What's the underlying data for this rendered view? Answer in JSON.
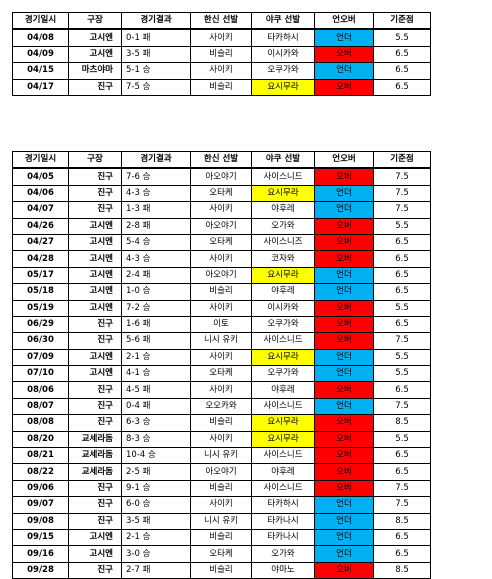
{
  "headers": [
    "경기일시",
    "구장",
    "경기결과",
    "한신 선발",
    "야쿠 선발",
    "언오버",
    "기준점"
  ],
  "colors": {
    "under": "#00b0f0",
    "over": "#ff0000",
    "yellow": "#ffff00"
  },
  "table1": [
    {
      "date": "04/08",
      "venue": "고시엔",
      "result": "0-1 패",
      "hanshin": "사이키",
      "yakult": "타카하시",
      "yakult_hl": false,
      "uo": "언더",
      "uo_color": "under",
      "line": "5.5"
    },
    {
      "date": "04/09",
      "venue": "고시엔",
      "result": "3-5 패",
      "hanshin": "비슬리",
      "yakult": "이시카와",
      "yakult_hl": false,
      "uo": "오버",
      "uo_color": "over",
      "line": "6.5"
    },
    {
      "date": "04/15",
      "venue": "마츠야마",
      "result": "5-1 승",
      "hanshin": "사이키",
      "yakult": "오쿠가와",
      "yakult_hl": false,
      "uo": "언더",
      "uo_color": "under",
      "line": "6.5"
    },
    {
      "date": "04/17",
      "venue": "진구",
      "result": "7-5 승",
      "hanshin": "비슬리",
      "yakult": "요시무라",
      "yakult_hl": true,
      "uo": "오버",
      "uo_color": "over",
      "line": "6.5"
    }
  ],
  "table2": [
    {
      "date": "04/05",
      "venue": "진구",
      "result": "7-6 승",
      "hanshin": "아오야기",
      "yakult": "사이스니드",
      "yakult_hl": false,
      "uo": "오버",
      "uo_color": "over",
      "line": "7.5"
    },
    {
      "date": "04/06",
      "venue": "진구",
      "result": "4-3 승",
      "hanshin": "오타케",
      "yakult": "요시무라",
      "yakult_hl": true,
      "uo": "언더",
      "uo_color": "under",
      "line": "7.5"
    },
    {
      "date": "04/07",
      "venue": "진구",
      "result": "1-3 패",
      "hanshin": "사이키",
      "yakult": "야후레",
      "yakult_hl": false,
      "uo": "언더",
      "uo_color": "under",
      "line": "7.5"
    },
    {
      "date": "04/26",
      "venue": "고시엔",
      "result": "2-8 패",
      "hanshin": "아오야기",
      "yakult": "오가와",
      "yakult_hl": false,
      "uo": "오버",
      "uo_color": "over",
      "line": "5.5"
    },
    {
      "date": "04/27",
      "venue": "고시엔",
      "result": "5-4 승",
      "hanshin": "오타케",
      "yakult": "사이스니즈",
      "yakult_hl": false,
      "uo": "오버",
      "uo_color": "over",
      "line": "6.5"
    },
    {
      "date": "04/28",
      "venue": "고시엔",
      "result": "4-3 승",
      "hanshin": "사이키",
      "yakult": "코자와",
      "yakult_hl": false,
      "uo": "오버",
      "uo_color": "over",
      "line": "6.5"
    },
    {
      "date": "05/17",
      "venue": "고시엔",
      "result": "2-4 패",
      "hanshin": "아오야기",
      "yakult": "요시무라",
      "yakult_hl": true,
      "uo": "언더",
      "uo_color": "under",
      "line": "6.5"
    },
    {
      "date": "05/18",
      "venue": "고시엔",
      "result": "1-0 승",
      "hanshin": "비슬리",
      "yakult": "야후레",
      "yakult_hl": false,
      "uo": "언더",
      "uo_color": "under",
      "line": "6.5"
    },
    {
      "date": "05/19",
      "venue": "고시엔",
      "result": "7-2 승",
      "hanshin": "사이키",
      "yakult": "이시카와",
      "yakult_hl": false,
      "uo": "오버",
      "uo_color": "over",
      "line": "5.5"
    },
    {
      "date": "06/29",
      "venue": "진구",
      "result": "1-6 패",
      "hanshin": "이토",
      "yakult": "오쿠가와",
      "yakult_hl": false,
      "uo": "오버",
      "uo_color": "over",
      "line": "6.5"
    },
    {
      "date": "06/30",
      "venue": "진구",
      "result": "5-6 패",
      "hanshin": "니시 유키",
      "yakult": "사이스니드",
      "yakult_hl": false,
      "uo": "오버",
      "uo_color": "over",
      "line": "7.5"
    },
    {
      "date": "07/09",
      "venue": "고시엔",
      "result": "2-1 승",
      "hanshin": "사이키",
      "yakult": "요시무라",
      "yakult_hl": true,
      "uo": "언더",
      "uo_color": "under",
      "line": "5.5"
    },
    {
      "date": "07/10",
      "venue": "고시엔",
      "result": "4-1 승",
      "hanshin": "오타케",
      "yakult": "오쿠가와",
      "yakult_hl": false,
      "uo": "언더",
      "uo_color": "under",
      "line": "5.5"
    },
    {
      "date": "08/06",
      "venue": "진구",
      "result": "4-5 패",
      "hanshin": "사이키",
      "yakult": "야후레",
      "yakult_hl": false,
      "uo": "오버",
      "uo_color": "over",
      "line": "6.5"
    },
    {
      "date": "08/07",
      "venue": "진구",
      "result": "0-4 패",
      "hanshin": "오오카와",
      "yakult": "사이스니드",
      "yakult_hl": false,
      "uo": "언더",
      "uo_color": "under",
      "line": "7.5"
    },
    {
      "date": "08/08",
      "venue": "진구",
      "result": "6-3 승",
      "hanshin": "비슬리",
      "yakult": "요시무라",
      "yakult_hl": true,
      "uo": "오버",
      "uo_color": "over",
      "line": "8.5"
    },
    {
      "date": "08/20",
      "venue": "교세라돔",
      "result": "8-3 승",
      "hanshin": "사이키",
      "yakult": "요시무라",
      "yakult_hl": true,
      "uo": "오버",
      "uo_color": "over",
      "line": "5.5"
    },
    {
      "date": "08/21",
      "venue": "교세라돔",
      "result": "10-4 승",
      "hanshin": "니시 유키",
      "yakult": "사이스니드",
      "yakult_hl": false,
      "uo": "오버",
      "uo_color": "over",
      "line": "6.5"
    },
    {
      "date": "08/22",
      "venue": "교세라돔",
      "result": "2-5 패",
      "hanshin": "아오야기",
      "yakult": "야후레",
      "yakult_hl": false,
      "uo": "오버",
      "uo_color": "over",
      "line": "6.5"
    },
    {
      "date": "09/06",
      "venue": "진구",
      "result": "9-1 승",
      "hanshin": "비슬리",
      "yakult": "사이스니드",
      "yakult_hl": false,
      "uo": "오버",
      "uo_color": "over",
      "line": "7.5"
    },
    {
      "date": "09/07",
      "venue": "진구",
      "result": "6-0 승",
      "hanshin": "사이키",
      "yakult": "타카하시",
      "yakult_hl": false,
      "uo": "언더",
      "uo_color": "under",
      "line": "7.5"
    },
    {
      "date": "09/08",
      "venue": "진구",
      "result": "3-5 패",
      "hanshin": "니시 유키",
      "yakult": "타카나시",
      "yakult_hl": false,
      "uo": "언더",
      "uo_color": "under",
      "line": "8.5"
    },
    {
      "date": "09/15",
      "venue": "고시엔",
      "result": "2-1 승",
      "hanshin": "비슬리",
      "yakult": "타카나시",
      "yakult_hl": false,
      "uo": "언더",
      "uo_color": "under",
      "line": "6.5"
    },
    {
      "date": "09/16",
      "venue": "고시엔",
      "result": "3-0 승",
      "hanshin": "오타케",
      "yakult": "오가와",
      "yakult_hl": false,
      "uo": "언더",
      "uo_color": "under",
      "line": "6.5"
    },
    {
      "date": "09/28",
      "venue": "진구",
      "result": "2-7 패",
      "hanshin": "비슬리",
      "yakult": "야마노",
      "yakult_hl": false,
      "uo": "오버",
      "uo_color": "over",
      "line": "8.5"
    }
  ]
}
